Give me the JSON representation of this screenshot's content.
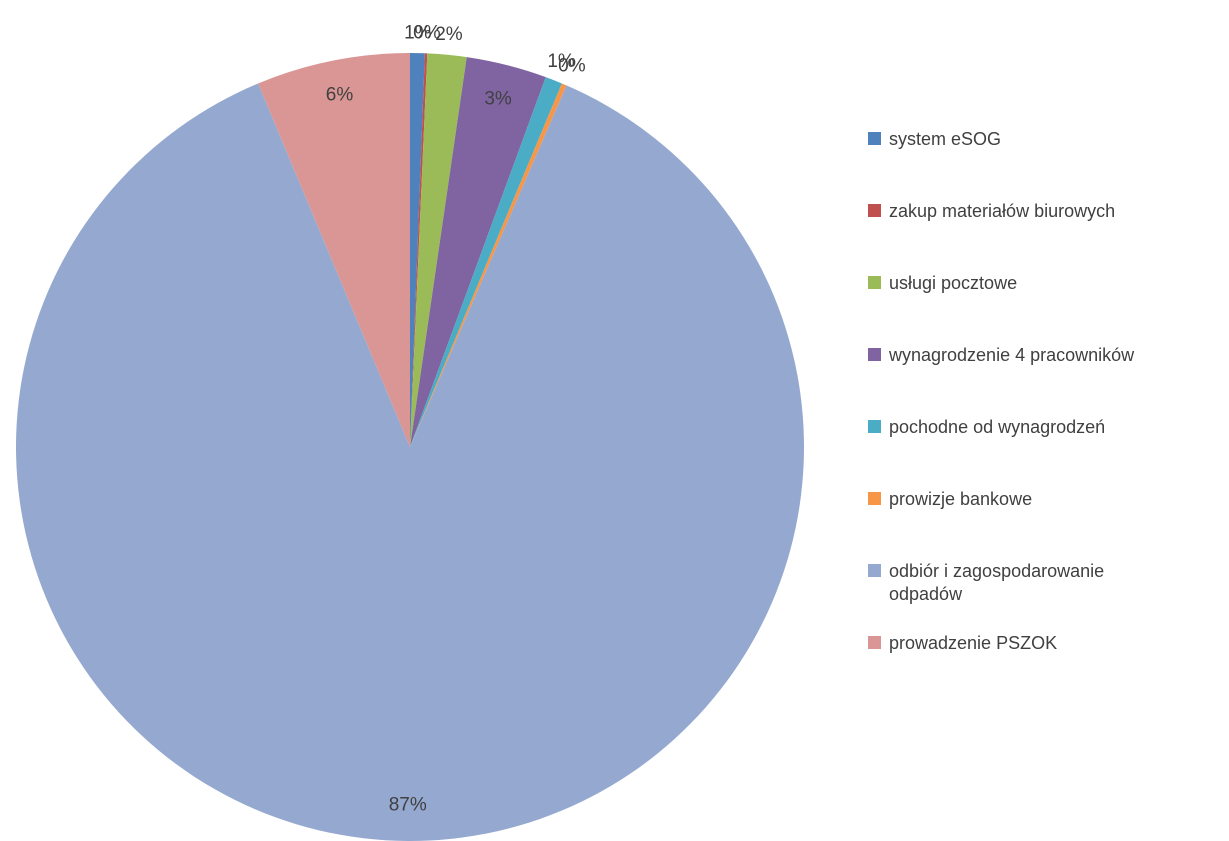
{
  "chart_data": {
    "type": "pie",
    "categories": [
      "system eSOG",
      "zakup materiałów biurowych",
      "usługi pocztowe",
      "wynagrodzenie 4 pracowników",
      "pochodne od wynagrodzeń",
      "prowizje bankowe",
      "odbiór i zagospodarowanie odpadów",
      "prowadzenie PSZOK"
    ],
    "values": [
      0.6,
      0.1,
      1.6,
      3.3,
      0.7,
      0.2,
      87.2,
      6.3
    ],
    "value_labels": [
      "1%",
      "0%",
      "2%",
      "3%",
      "1%",
      "0%",
      "87%",
      "6%"
    ],
    "colors": [
      "#4f81bd",
      "#c0504d",
      "#9bbb59",
      "#8064a2",
      "#4bacc6",
      "#f79646",
      "#95a9d0",
      "#d99694"
    ],
    "legend": "right"
  }
}
